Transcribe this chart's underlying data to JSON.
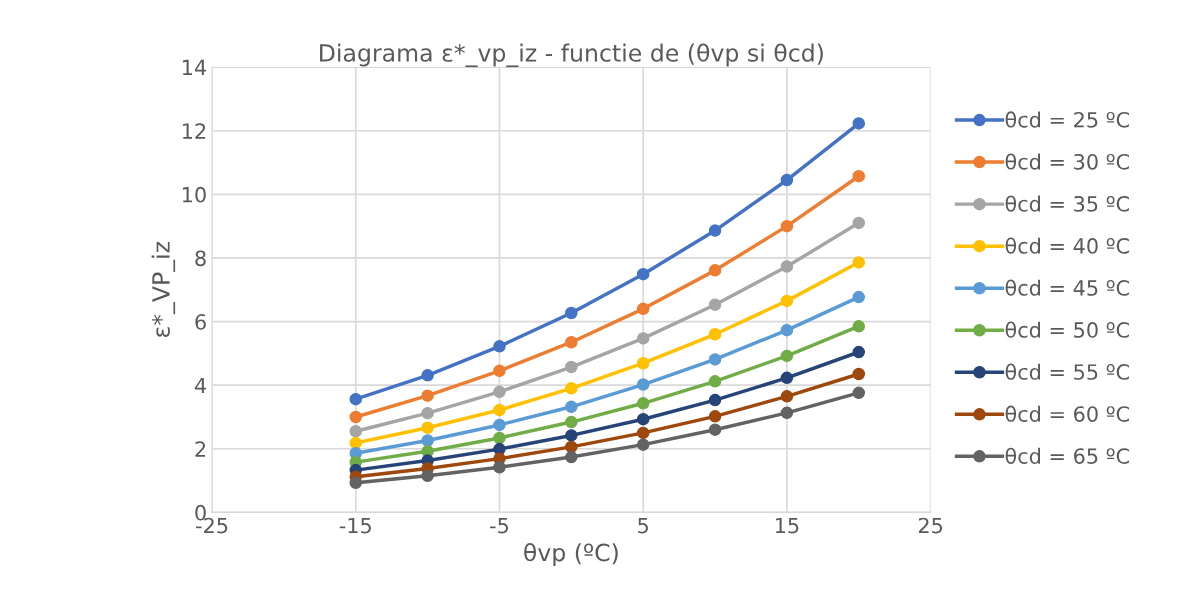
{
  "chart_data": {
    "type": "line",
    "title": "Diagrama ε*_vp_iz - functie de (θvp si θcd)",
    "xlabel": "θvp (ºC)",
    "ylabel": "ε*_VP_iz",
    "x": [
      -15,
      -10,
      -5,
      0,
      5,
      10,
      15,
      20
    ],
    "xlim": [
      -25,
      25
    ],
    "xticks": [
      -25,
      -15,
      -5,
      5,
      15,
      25
    ],
    "ylim": [
      0,
      14
    ],
    "yticks": [
      0,
      2,
      4,
      6,
      8,
      10,
      12,
      14
    ],
    "grid": true,
    "legend": "right",
    "marker": "circle",
    "line_style": "solid",
    "series": [
      {
        "name": "θcd = 25 ºC",
        "color": "#4472c4",
        "values": [
          3.56,
          4.31,
          5.22,
          6.27,
          7.49,
          8.86,
          10.45,
          12.23
        ]
      },
      {
        "name": "θcd = 30 ºC",
        "color": "#ed7d31",
        "values": [
          3.0,
          3.67,
          4.45,
          5.35,
          6.4,
          7.61,
          9.0,
          10.57
        ]
      },
      {
        "name": "θcd = 35 ºC",
        "color": "#a5a5a5",
        "values": [
          2.55,
          3.12,
          3.79,
          4.57,
          5.47,
          6.53,
          7.73,
          9.1
        ]
      },
      {
        "name": "θcd = 40 ºC",
        "color": "#ffc000",
        "values": [
          2.18,
          2.66,
          3.22,
          3.9,
          4.69,
          5.6,
          6.65,
          7.86
        ]
      },
      {
        "name": "θcd = 45 ºC",
        "color": "#5b9bd5",
        "values": [
          1.86,
          2.26,
          2.75,
          3.32,
          4.02,
          4.81,
          5.73,
          6.77
        ]
      },
      {
        "name": "θcd = 50 ºC",
        "color": "#70ad47",
        "values": [
          1.58,
          1.92,
          2.34,
          2.84,
          3.43,
          4.12,
          4.92,
          5.85
        ]
      },
      {
        "name": "θcd = 55 ºC",
        "color": "#264478",
        "values": [
          1.33,
          1.63,
          1.99,
          2.42,
          2.93,
          3.53,
          4.23,
          5.04
        ]
      },
      {
        "name": "θcd = 60 ºC",
        "color": "#9e480e",
        "values": [
          1.12,
          1.38,
          1.69,
          2.06,
          2.5,
          3.02,
          3.65,
          4.35
        ]
      },
      {
        "name": "θcd = 65 ºC",
        "color": "#636363",
        "values": [
          0.93,
          1.15,
          1.42,
          1.74,
          2.13,
          2.6,
          3.13,
          3.76
        ]
      }
    ]
  }
}
